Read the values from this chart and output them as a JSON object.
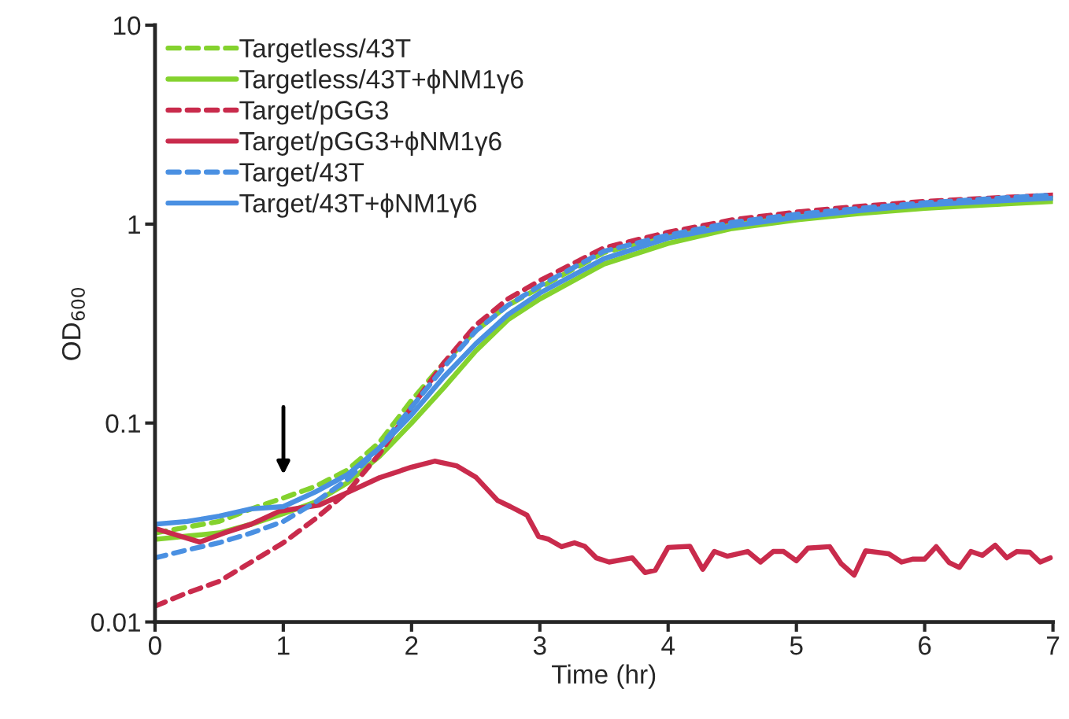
{
  "chart_data": {
    "type": "line",
    "xlabel": "Time (hr)",
    "ylabel": "OD$_{600}$",
    "log": "y",
    "xlim": [
      0,
      7
    ],
    "xticks": [
      0,
      1,
      2,
      3,
      4,
      5,
      6,
      7
    ],
    "ylim": [
      0.01,
      10
    ],
    "yticks": [
      {
        "value": 0.01,
        "label": "0.01"
      },
      {
        "value": 0.1,
        "label": "0.1"
      },
      1,
      10
    ],
    "grid": false,
    "legend": "top left",
    "marker": "none",
    "series": [
      {
        "name": "Targetless/43T",
        "color": "#84d22e",
        "line_style": "dashed",
        "x": [
          0,
          0.25,
          0.5,
          0.75,
          1,
          1.25,
          1.5,
          1.75,
          2,
          2.25,
          2.5,
          2.75,
          3,
          3.5,
          4,
          4.5,
          5,
          5.5,
          6,
          6.5,
          7
        ],
        "values": [
          0.028,
          0.03,
          0.032,
          0.037,
          0.042,
          0.048,
          0.058,
          0.08,
          0.13,
          0.2,
          0.29,
          0.39,
          0.48,
          0.72,
          0.87,
          1.0,
          1.1,
          1.18,
          1.25,
          1.3,
          1.35
        ]
      },
      {
        "name": "Targetless/43T+ϕNM1γ6",
        "color": "#84d22e",
        "line_style": "solid",
        "x": [
          0,
          0.25,
          0.5,
          0.75,
          1,
          1.25,
          1.5,
          1.75,
          2,
          2.25,
          2.5,
          2.75,
          3,
          3.5,
          4,
          4.5,
          5,
          5.5,
          6,
          6.5,
          7
        ],
        "values": [
          0.026,
          0.027,
          0.028,
          0.031,
          0.035,
          0.04,
          0.05,
          0.068,
          0.1,
          0.15,
          0.23,
          0.33,
          0.42,
          0.63,
          0.8,
          0.95,
          1.05,
          1.13,
          1.2,
          1.25,
          1.3
        ]
      },
      {
        "name": "Target/pGG3",
        "color": "#c92b4c",
        "line_style": "dashed",
        "x": [
          0,
          0.25,
          0.5,
          0.75,
          1,
          1.25,
          1.5,
          1.75,
          2,
          2.25,
          2.5,
          2.75,
          3,
          3.5,
          4,
          4.5,
          5,
          5.5,
          6,
          6.5,
          7
        ],
        "values": [
          0.012,
          0.014,
          0.016,
          0.02,
          0.025,
          0.033,
          0.045,
          0.07,
          0.12,
          0.2,
          0.31,
          0.42,
          0.52,
          0.76,
          0.91,
          1.05,
          1.15,
          1.23,
          1.3,
          1.35,
          1.4
        ]
      },
      {
        "name": "Target/pGG3+ϕNM1γ6",
        "color": "#c92b4c",
        "line_style": "solid",
        "x": [
          0,
          0.35,
          0.54,
          0.75,
          0.97,
          1.28,
          1.5,
          1.75,
          2.0,
          2.18,
          2.35,
          2.5,
          2.67,
          2.77,
          2.9,
          2.99,
          3.07,
          3.17,
          3.27,
          3.35,
          3.44,
          3.54,
          3.72,
          3.82,
          3.9,
          4.0,
          4.17,
          4.27,
          4.36,
          4.46,
          4.62,
          4.72,
          4.82,
          4.9,
          5.0,
          5.09,
          5.26,
          5.35,
          5.45,
          5.54,
          5.72,
          5.82,
          5.91,
          6.0,
          6.09,
          6.19,
          6.27,
          6.36,
          6.45,
          6.55,
          6.64,
          6.72,
          6.82,
          6.9,
          6.98
        ],
        "values": [
          0.0295,
          0.0252,
          0.028,
          0.031,
          0.036,
          0.0387,
          0.0447,
          0.0531,
          0.06,
          0.0643,
          0.061,
          0.0535,
          0.0408,
          0.038,
          0.0344,
          0.0269,
          0.026,
          0.0239,
          0.025,
          0.024,
          0.021,
          0.02,
          0.021,
          0.0177,
          0.0182,
          0.0237,
          0.024,
          0.0184,
          0.0226,
          0.0214,
          0.0226,
          0.02,
          0.0226,
          0.0226,
          0.0203,
          0.0235,
          0.0239,
          0.0196,
          0.0172,
          0.0228,
          0.022,
          0.02,
          0.0207,
          0.0207,
          0.0239,
          0.0199,
          0.0188,
          0.0226,
          0.0216,
          0.0243,
          0.021,
          0.0226,
          0.0224,
          0.02,
          0.021
        ]
      },
      {
        "name": "Target/43T",
        "color": "#4a90e2",
        "line_style": "dashed",
        "x": [
          0,
          0.25,
          0.5,
          0.75,
          1,
          1.25,
          1.5,
          1.75,
          2,
          2.25,
          2.5,
          2.75,
          3,
          3.5,
          4,
          4.5,
          5,
          5.5,
          6,
          6.5,
          7
        ],
        "values": [
          0.021,
          0.023,
          0.025,
          0.028,
          0.032,
          0.04,
          0.052,
          0.075,
          0.12,
          0.19,
          0.29,
          0.39,
          0.49,
          0.73,
          0.88,
          1.02,
          1.12,
          1.2,
          1.28,
          1.34,
          1.4
        ]
      },
      {
        "name": "Target/43T+ϕNM1γ6",
        "color": "#4a90e2",
        "line_style": "solid",
        "x": [
          0,
          0.25,
          0.5,
          0.75,
          1,
          1.25,
          1.5,
          1.75,
          2,
          2.25,
          2.5,
          2.75,
          3,
          3.5,
          4,
          4.5,
          5,
          5.5,
          6,
          6.5,
          7
        ],
        "values": [
          0.031,
          0.032,
          0.034,
          0.037,
          0.038,
          0.045,
          0.055,
          0.075,
          0.11,
          0.17,
          0.25,
          0.35,
          0.45,
          0.67,
          0.85,
          0.98,
          1.08,
          1.17,
          1.25,
          1.3,
          1.35
        ]
      }
    ]
  }
}
